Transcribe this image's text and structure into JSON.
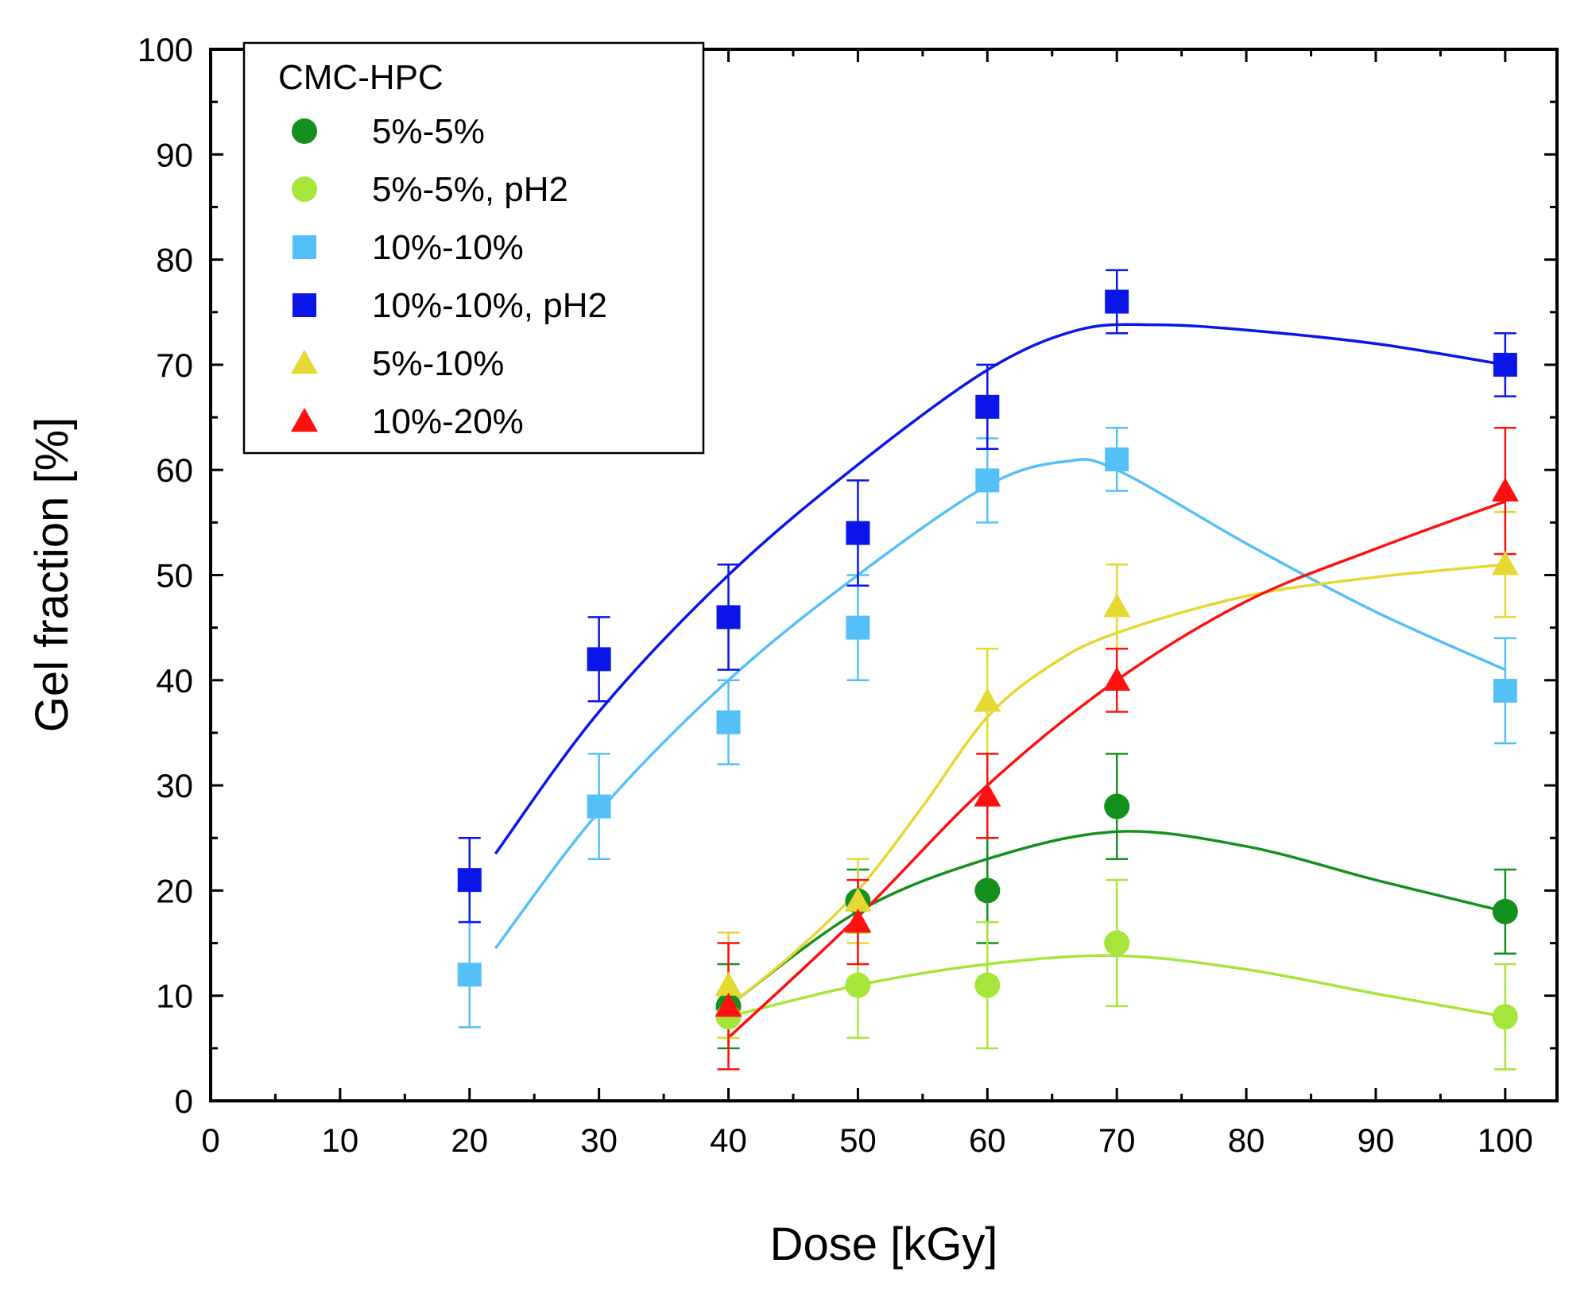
{
  "chart_data": {
    "type": "scatter",
    "xlabel": "Dose [kGy]",
    "ylabel": "Gel fraction [%]",
    "xlim": [
      0,
      104
    ],
    "ylim": [
      0,
      100
    ],
    "xticks": [
      0,
      10,
      20,
      30,
      40,
      50,
      60,
      70,
      80,
      90,
      100
    ],
    "yticks": [
      0,
      10,
      20,
      30,
      40,
      50,
      60,
      70,
      80,
      90,
      100
    ],
    "legend": {
      "title": "CMC-HPC",
      "position": "top-left"
    },
    "series": [
      {
        "name": "5%-5%",
        "marker": "circle",
        "color": "#14901e",
        "x": [
          40,
          50,
          60,
          70,
          100
        ],
        "y": [
          9,
          19,
          20,
          28,
          18
        ],
        "err": [
          4,
          3,
          5,
          5,
          4
        ],
        "fit_x": [
          40,
          50,
          60,
          70,
          80,
          90,
          100
        ],
        "fit_y": [
          9,
          18,
          23,
          25.6,
          24.2,
          21,
          18
        ]
      },
      {
        "name": "5%-5%, pH2",
        "marker": "circle",
        "color": "#a6e63b",
        "x": [
          40,
          50,
          60,
          70,
          100
        ],
        "y": [
          8,
          11,
          11,
          15,
          8
        ],
        "err": [
          2,
          5,
          6,
          6,
          5
        ],
        "fit_x": [
          40,
          50,
          60,
          70,
          80,
          90,
          100
        ],
        "fit_y": [
          8,
          11,
          13,
          13.8,
          12.5,
          10.2,
          8
        ]
      },
      {
        "name": "10%-10%",
        "marker": "square",
        "color": "#55c0f8",
        "x": [
          20,
          30,
          40,
          50,
          60,
          70,
          100
        ],
        "y": [
          12,
          28,
          36,
          45,
          59,
          61,
          39
        ],
        "err": [
          5,
          5,
          4,
          5,
          4,
          3,
          5
        ],
        "fit_x": [
          22,
          30,
          40,
          50,
          60,
          66,
          70,
          80,
          90,
          100
        ],
        "fit_y": [
          14.5,
          27.5,
          40,
          50,
          58.5,
          60.8,
          60,
          53,
          46.5,
          41
        ]
      },
      {
        "name": "10%-10%, pH2",
        "marker": "square",
        "color": "#0a16e8",
        "x": [
          20,
          30,
          40,
          50,
          60,
          70,
          100
        ],
        "y": [
          21,
          42,
          46,
          54,
          66,
          76,
          70
        ],
        "err": [
          4,
          4,
          5,
          5,
          4,
          3,
          3
        ],
        "fit_x": [
          22,
          30,
          40,
          50,
          60,
          67,
          73,
          80,
          90,
          100
        ],
        "fit_y": [
          23.5,
          37,
          50,
          60.5,
          69.5,
          73.3,
          73.8,
          73.3,
          72,
          70
        ]
      },
      {
        "name": "5%-10%",
        "marker": "triangle",
        "color": "#e6d832",
        "x": [
          40,
          50,
          60,
          70,
          100
        ],
        "y": [
          11,
          19,
          38,
          47,
          51
        ],
        "err": [
          5,
          4,
          5,
          4,
          5
        ],
        "fit_x": [
          40,
          45,
          50,
          55,
          60,
          65,
          70,
          80,
          90,
          100
        ],
        "fit_y": [
          9,
          14,
          20,
          28,
          36.5,
          41.5,
          44.5,
          48,
          49.8,
          51
        ]
      },
      {
        "name": "10%-20%",
        "marker": "triangle",
        "color": "#ff1010",
        "x": [
          40,
          50,
          60,
          70,
          100
        ],
        "y": [
          9,
          17,
          29,
          40,
          58
        ],
        "err": [
          6,
          4,
          4,
          3,
          6
        ],
        "fit_x": [
          40,
          50,
          60,
          70,
          80,
          90,
          100
        ],
        "fit_y": [
          6,
          17.5,
          30,
          40,
          47.5,
          52.5,
          57
        ]
      }
    ]
  }
}
